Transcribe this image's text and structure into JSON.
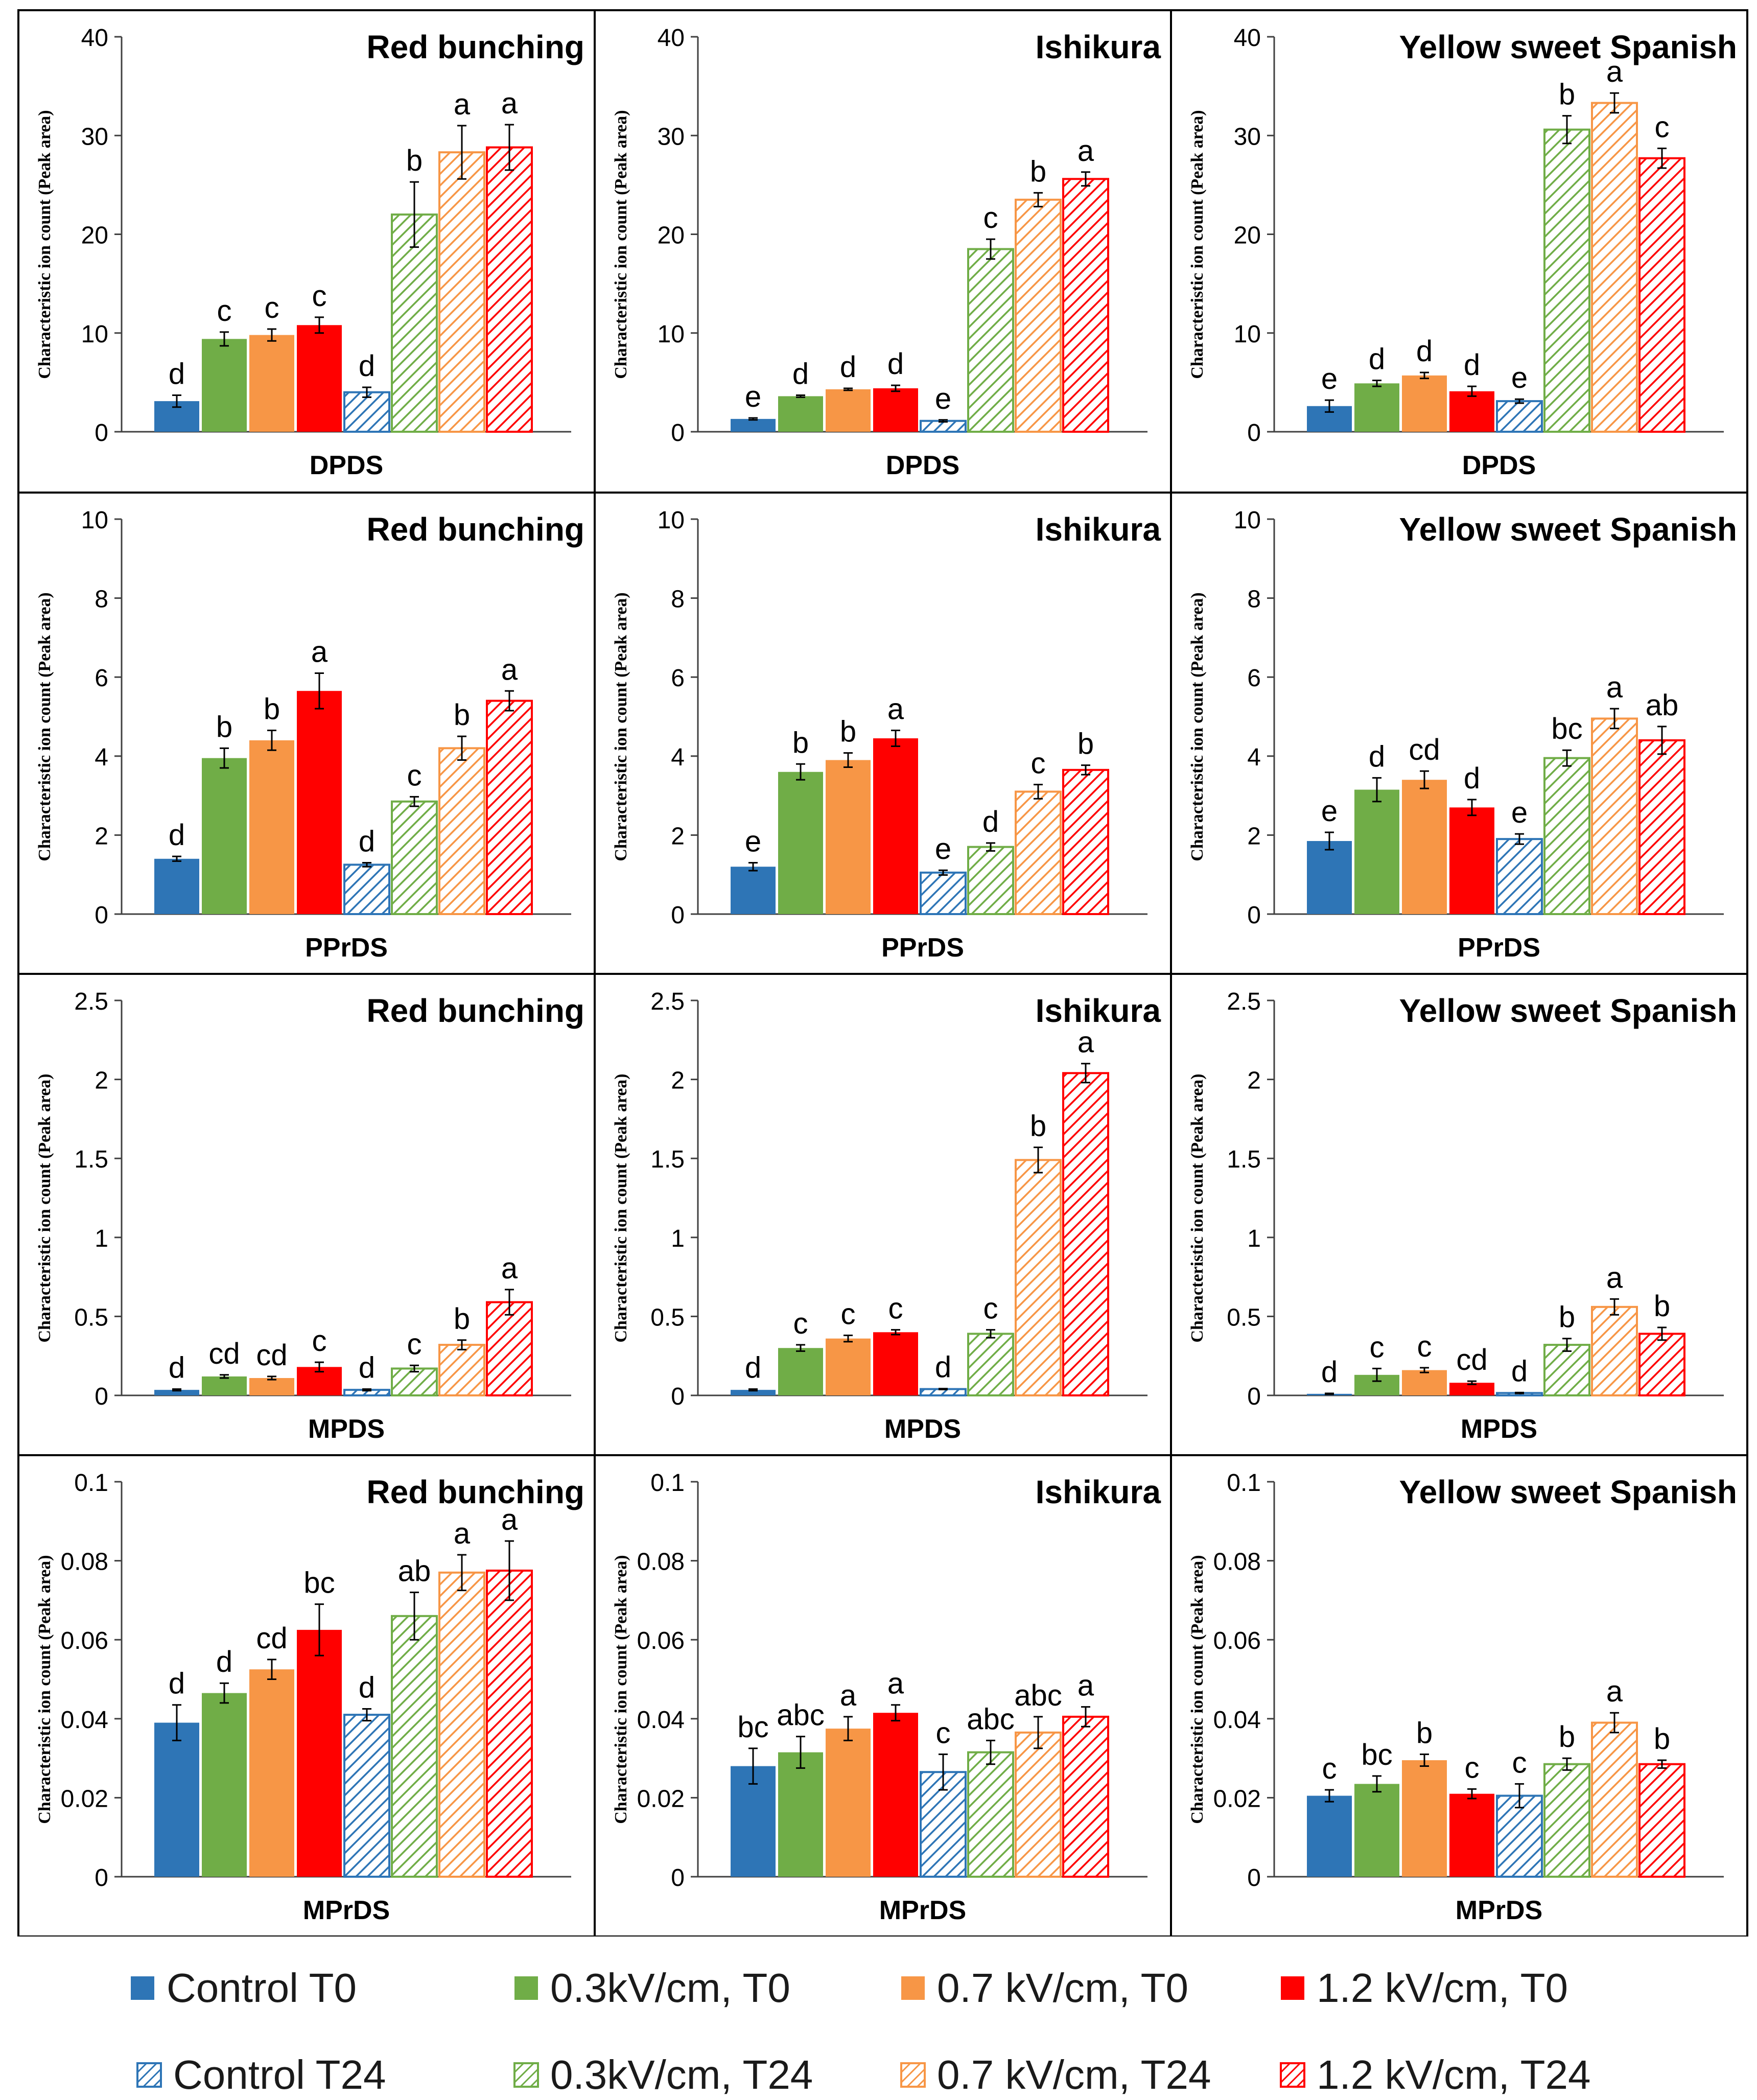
{
  "chart_data": {
    "type": "bar",
    "figure_layout": "4 rows x 3 columns grid of grouped bar charts with error bars and significance letters",
    "ylabel": "Characteristic ion count (Peak area)",
    "colors": {
      "Control": "#2e75b6",
      "0.3": "#70ad47",
      "0.7": "#f79646",
      "1.2": "#ff0000"
    },
    "legend": [
      {
        "label": "Control T0",
        "color": "#2e75b6",
        "hatched": false
      },
      {
        "label": "0.3kV/cm, T0",
        "color": "#70ad47",
        "hatched": false
      },
      {
        "label": "0.7 kV/cm, T0",
        "color": "#f79646",
        "hatched": false
      },
      {
        "label": "1.2 kV/cm, T0",
        "color": "#ff0000",
        "hatched": false
      },
      {
        "label": "Control T24",
        "color": "#2e75b6",
        "hatched": true
      },
      {
        "label": "0.3kV/cm, T24",
        "color": "#70ad47",
        "hatched": true
      },
      {
        "label": "0.7 kV/cm, T24",
        "color": "#f79646",
        "hatched": true
      },
      {
        "label": "1.2 kV/cm, T24",
        "color": "#ff0000",
        "hatched": true
      }
    ],
    "rows": [
      {
        "xlabel": "DPDS",
        "ylim": [
          0,
          40
        ],
        "ticks": [
          "0",
          "10",
          "20",
          "30",
          "40"
        ],
        "panels": [
          {
            "title": "Red bunching",
            "values": [
              3.1,
              9.4,
              9.8,
              10.8,
              4.0,
              22.0,
              28.3,
              28.8
            ],
            "errors": [
              0.6,
              0.7,
              0.6,
              0.8,
              0.5,
              3.3,
              2.7,
              2.3
            ],
            "letters": [
              "d",
              "c",
              "c",
              "c",
              "d",
              "b",
              "a",
              "a"
            ]
          },
          {
            "title": "Ishikura",
            "values": [
              1.3,
              3.6,
              4.3,
              4.4,
              1.1,
              18.5,
              23.5,
              25.6
            ],
            "errors": [
              0.1,
              0.1,
              0.1,
              0.3,
              0.1,
              1.0,
              0.7,
              0.7
            ],
            "letters": [
              "e",
              "d",
              "d",
              "d",
              "e",
              "c",
              "b",
              "a"
            ]
          },
          {
            "title": "Yellow sweet Spanish",
            "values": [
              2.6,
              4.9,
              5.7,
              4.1,
              3.1,
              30.6,
              33.3,
              27.7
            ],
            "errors": [
              0.6,
              0.3,
              0.3,
              0.5,
              0.2,
              1.4,
              1.0,
              1.0
            ],
            "letters": [
              "e",
              "d",
              "d",
              "d",
              "e",
              "b",
              "a",
              "c"
            ]
          }
        ]
      },
      {
        "xlabel": "PPrDS",
        "ylim": [
          0,
          10
        ],
        "ticks": [
          "0",
          "2",
          "4",
          "6",
          "8",
          "10"
        ],
        "panels": [
          {
            "title": "Red bunching",
            "values": [
              1.4,
              3.95,
              4.4,
              5.65,
              1.25,
              2.85,
              4.2,
              5.4
            ],
            "errors": [
              0.06,
              0.25,
              0.25,
              0.45,
              0.05,
              0.12,
              0.3,
              0.25
            ],
            "letters": [
              "d",
              "b",
              "b",
              "a",
              "d",
              "c",
              "b",
              "a"
            ]
          },
          {
            "title": "Ishikura",
            "values": [
              1.2,
              3.6,
              3.9,
              4.45,
              1.05,
              1.7,
              3.1,
              3.65
            ],
            "errors": [
              0.1,
              0.2,
              0.18,
              0.2,
              0.06,
              0.1,
              0.18,
              0.12
            ],
            "letters": [
              "e",
              "b",
              "b",
              "a",
              "e",
              "d",
              "c",
              "b"
            ]
          },
          {
            "title": "Yellow sweet Spanish",
            "values": [
              1.85,
              3.15,
              3.4,
              2.7,
              1.9,
              3.95,
              4.95,
              4.4
            ],
            "errors": [
              0.22,
              0.3,
              0.22,
              0.2,
              0.13,
              0.2,
              0.25,
              0.35
            ],
            "letters": [
              "e",
              "d",
              "cd",
              "d",
              "e",
              "bc",
              "a",
              "ab"
            ]
          }
        ]
      },
      {
        "xlabel": "MPDS",
        "ylim": [
          0,
          2.5
        ],
        "ticks": [
          "0",
          "0.5",
          "1",
          "1.5",
          "2",
          "2.5"
        ],
        "panels": [
          {
            "title": "Red bunching",
            "values": [
              0.035,
              0.12,
              0.11,
              0.18,
              0.035,
              0.17,
              0.32,
              0.59
            ],
            "errors": [
              0.005,
              0.01,
              0.01,
              0.03,
              0.005,
              0.02,
              0.03,
              0.08
            ],
            "letters": [
              "d",
              "cd",
              "cd",
              "c",
              "d",
              "c",
              "b",
              "a"
            ]
          },
          {
            "title": "Ishikura",
            "values": [
              0.035,
              0.3,
              0.36,
              0.4,
              0.04,
              0.39,
              1.49,
              2.04
            ],
            "errors": [
              0.005,
              0.02,
              0.02,
              0.015,
              0.003,
              0.025,
              0.08,
              0.06
            ],
            "letters": [
              "d",
              "c",
              "c",
              "c",
              "d",
              "c",
              "b",
              "a"
            ]
          },
          {
            "title": "Yellow sweet Spanish",
            "values": [
              0.01,
              0.13,
              0.16,
              0.08,
              0.015,
              0.32,
              0.56,
              0.39
            ],
            "errors": [
              0.003,
              0.04,
              0.015,
              0.01,
              0.003,
              0.04,
              0.05,
              0.04
            ],
            "letters": [
              "d",
              "c",
              "c",
              "cd",
              "d",
              "b",
              "a",
              "b"
            ]
          }
        ]
      },
      {
        "xlabel": "MPrDS",
        "ylim": [
          0,
          0.1
        ],
        "ticks": [
          "0",
          "0.02",
          "0.04",
          "0.06",
          "0.08",
          "0.1"
        ],
        "panels": [
          {
            "title": "Red bunching",
            "values": [
              0.039,
              0.0465,
              0.0525,
              0.0625,
              0.041,
              0.066,
              0.077,
              0.0775
            ],
            "errors": [
              0.0045,
              0.0025,
              0.0025,
              0.0065,
              0.0015,
              0.006,
              0.0045,
              0.0075
            ],
            "letters": [
              "d",
              "d",
              "cd",
              "bc",
              "d",
              "ab",
              "a",
              "a"
            ]
          },
          {
            "title": "Ishikura",
            "values": [
              0.028,
              0.0315,
              0.0375,
              0.0415,
              0.0265,
              0.0315,
              0.0365,
              0.0405
            ],
            "errors": [
              0.0045,
              0.004,
              0.003,
              0.002,
              0.0045,
              0.003,
              0.004,
              0.0025
            ],
            "letters": [
              "bc",
              "abc",
              "a",
              "a",
              "c",
              "abc",
              "abc",
              "a"
            ]
          },
          {
            "title": "Yellow sweet Spanish",
            "values": [
              0.0205,
              0.0235,
              0.0295,
              0.021,
              0.0205,
              0.0285,
              0.039,
              0.0285
            ],
            "errors": [
              0.0015,
              0.002,
              0.0015,
              0.0012,
              0.003,
              0.0015,
              0.0025,
              0.001
            ],
            "letters": [
              "c",
              "bc",
              "b",
              "c",
              "c",
              "b",
              "a",
              "b"
            ]
          }
        ]
      }
    ]
  }
}
